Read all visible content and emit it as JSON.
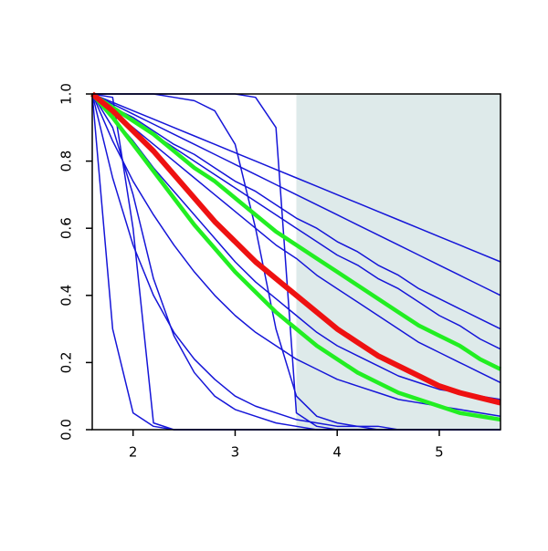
{
  "chart_data": {
    "type": "line",
    "x": [
      1.6,
      1.8,
      2.0,
      2.2,
      2.4,
      2.6,
      2.8,
      3.0,
      3.2,
      3.4,
      3.6,
      3.8,
      4.0,
      4.2,
      4.4,
      4.6,
      4.8,
      5.0,
      5.2,
      5.4,
      5.6
    ],
    "xlim": [
      1.6,
      5.6
    ],
    "xticks": [
      2,
      3,
      4,
      5
    ],
    "ylim": [
      0,
      1
    ],
    "yticks": [
      {
        "value": 0,
        "label": "0.0"
      },
      {
        "value": 0.2,
        "label": "0.2"
      },
      {
        "value": 0.4,
        "label": "0.4"
      },
      {
        "value": 0.6,
        "label": "0.6"
      },
      {
        "value": 0.8,
        "label": "0.8"
      },
      {
        "value": 1,
        "label": "1.0"
      }
    ],
    "shaded_region": {
      "xlim": [
        3.6,
        5.6
      ],
      "color": "#deeaea"
    },
    "series": [
      {
        "color": "#1515d8",
        "width": 1.5,
        "values": [
          1,
          0.975,
          0.95,
          0.925,
          0.9,
          0.875,
          0.85,
          0.825,
          0.8,
          0.775,
          0.75,
          0.725,
          0.7,
          0.675,
          0.65,
          0.625,
          0.6,
          0.575,
          0.55,
          0.525,
          0.5
        ]
      },
      {
        "color": "#1515d8",
        "width": 1.5,
        "values": [
          1,
          0.97,
          0.94,
          0.91,
          0.88,
          0.85,
          0.82,
          0.79,
          0.76,
          0.73,
          0.7,
          0.67,
          0.64,
          0.61,
          0.58,
          0.55,
          0.52,
          0.49,
          0.46,
          0.43,
          0.4
        ]
      },
      {
        "color": "#1515d8",
        "width": 1.5,
        "values": [
          1,
          0.96,
          0.93,
          0.89,
          0.85,
          0.82,
          0.78,
          0.74,
          0.71,
          0.67,
          0.63,
          0.6,
          0.56,
          0.53,
          0.49,
          0.46,
          0.42,
          0.39,
          0.36,
          0.33,
          0.3
        ]
      },
      {
        "color": "#1515d8",
        "width": 1.5,
        "values": [
          1,
          0.96,
          0.92,
          0.88,
          0.84,
          0.8,
          0.76,
          0.72,
          0.68,
          0.64,
          0.6,
          0.56,
          0.52,
          0.49,
          0.45,
          0.42,
          0.38,
          0.34,
          0.31,
          0.27,
          0.24
        ]
      },
      {
        "color": "#1515d8",
        "width": 1.5,
        "values": [
          1,
          0.95,
          0.9,
          0.85,
          0.8,
          0.75,
          0.7,
          0.65,
          0.6,
          0.55,
          0.51,
          0.46,
          0.42,
          0.38,
          0.34,
          0.3,
          0.26,
          0.23,
          0.2,
          0.17,
          0.14
        ]
      },
      {
        "color": "#1515d8",
        "width": 1.5,
        "values": [
          1,
          0.93,
          0.86,
          0.78,
          0.71,
          0.64,
          0.57,
          0.5,
          0.44,
          0.39,
          0.34,
          0.29,
          0.25,
          0.22,
          0.19,
          0.16,
          0.14,
          0.12,
          0.11,
          0.1,
          0.09
        ]
      },
      {
        "color": "#1515d8",
        "width": 1.5,
        "values": [
          1,
          0.86,
          0.74,
          0.64,
          0.55,
          0.47,
          0.4,
          0.34,
          0.29,
          0.25,
          0.21,
          0.18,
          0.15,
          0.13,
          0.11,
          0.09,
          0.08,
          0.07,
          0.06,
          0.05,
          0.04
        ]
      },
      {
        "color": "#1515d8",
        "width": 1.5,
        "values": [
          1,
          0.75,
          0.55,
          0.4,
          0.29,
          0.21,
          0.15,
          0.1,
          0.07,
          0.05,
          0.03,
          0.02,
          0.01,
          0.01,
          0.01,
          0,
          0,
          0,
          0,
          0,
          0
        ]
      },
      {
        "color": "#1515d8",
        "width": 1.5,
        "values": [
          1,
          0.9,
          0.7,
          0.45,
          0.28,
          0.17,
          0.1,
          0.06,
          0.04,
          0.02,
          0.01,
          0,
          0,
          0,
          0,
          0,
          0,
          0,
          0,
          0,
          0
        ]
      },
      {
        "color": "#1515d8",
        "width": 1.5,
        "values": [
          1,
          0.3,
          0.05,
          0.01,
          0,
          0,
          0,
          0,
          0,
          0,
          0,
          0,
          0,
          0,
          0,
          0,
          0,
          0,
          0,
          0,
          0
        ]
      },
      {
        "color": "#1515d8",
        "width": 1.5,
        "values": [
          1,
          0.99,
          0.6,
          0.02,
          0,
          0,
          0,
          0,
          0,
          0,
          0,
          0,
          0,
          0,
          0,
          0,
          0,
          0,
          0,
          0,
          0
        ]
      },
      {
        "color": "#1515d8",
        "width": 1.5,
        "values": [
          1,
          1,
          1,
          1,
          0.99,
          0.98,
          0.95,
          0.85,
          0.6,
          0.3,
          0.1,
          0.04,
          0.02,
          0.01,
          0,
          0,
          0,
          0,
          0,
          0,
          0
        ]
      },
      {
        "color": "#1515d8",
        "width": 1.5,
        "values": [
          1,
          1,
          1,
          1,
          1,
          1,
          1,
          1,
          0.99,
          0.9,
          0.05,
          0.01,
          0,
          0,
          0,
          0,
          0,
          0,
          0,
          0,
          0
        ]
      },
      {
        "color": "#22ee22",
        "width": 4.5,
        "values": [
          1,
          0.96,
          0.92,
          0.88,
          0.83,
          0.78,
          0.74,
          0.69,
          0.64,
          0.59,
          0.55,
          0.51,
          0.47,
          0.43,
          0.39,
          0.35,
          0.31,
          0.28,
          0.25,
          0.21,
          0.18
        ]
      },
      {
        "color": "#22ee22",
        "width": 4.5,
        "values": [
          1,
          0.93,
          0.85,
          0.77,
          0.69,
          0.61,
          0.54,
          0.47,
          0.41,
          0.35,
          0.3,
          0.25,
          0.21,
          0.17,
          0.14,
          0.11,
          0.09,
          0.07,
          0.05,
          0.04,
          0.03
        ]
      },
      {
        "color": "#ee1111",
        "width": 6,
        "values": [
          1,
          0.95,
          0.89,
          0.83,
          0.76,
          0.69,
          0.62,
          0.56,
          0.5,
          0.45,
          0.4,
          0.35,
          0.3,
          0.26,
          0.22,
          0.19,
          0.16,
          0.13,
          0.11,
          0.095,
          0.08
        ]
      }
    ]
  }
}
